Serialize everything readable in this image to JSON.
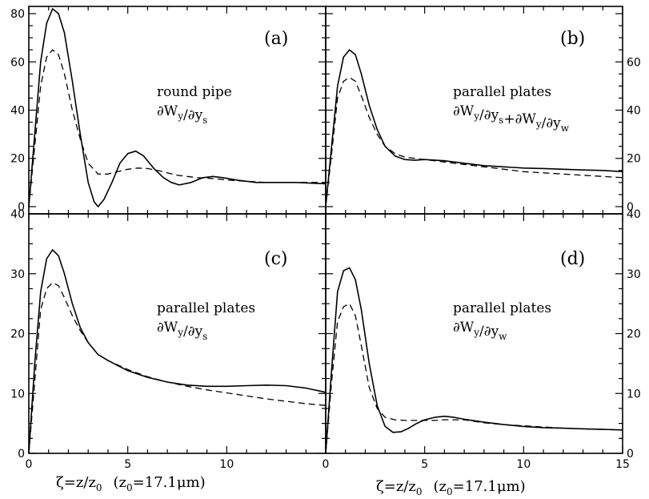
{
  "chart_data": [
    {
      "id": "a",
      "type": "line",
      "tag": "(a)",
      "annotation": [
        "round pipe",
        "∂W_y/∂y_s"
      ],
      "xlim": [
        0,
        15
      ],
      "ylim": [
        -3,
        83
      ],
      "left_ticks": [
        0,
        20,
        40,
        60,
        80
      ],
      "right_ticks": [
        0,
        20,
        40,
        60,
        80
      ],
      "series": [
        {
          "style": "solid",
          "x": [
            0,
            0.3,
            0.6,
            0.9,
            1.2,
            1.5,
            1.8,
            2.2,
            2.6,
            3.0,
            3.3,
            3.5,
            3.8,
            4.2,
            4.6,
            5.0,
            5.4,
            5.8,
            6.3,
            6.8,
            7.2,
            7.6,
            8.2,
            8.8,
            9.3,
            9.8,
            10.5,
            11.5,
            12.5,
            13.5,
            15
          ],
          "y": [
            0,
            30,
            60,
            76,
            82,
            80,
            72,
            52,
            30,
            10,
            2,
            0,
            3,
            10,
            18,
            22,
            23,
            21,
            16,
            12,
            10,
            9,
            10,
            12,
            12.5,
            12,
            11,
            10,
            10,
            10,
            9.5
          ]
        },
        {
          "style": "dashed",
          "x": [
            0,
            0.3,
            0.6,
            0.9,
            1.2,
            1.5,
            1.8,
            2.2,
            2.6,
            3.0,
            3.5,
            4.0,
            4.5,
            5.0,
            5.5,
            6.0,
            6.5,
            7.0,
            7.5,
            8.0,
            8.5,
            9.0,
            9.5,
            10.0,
            11.0,
            12.0,
            13.0,
            14.0,
            15.0
          ],
          "y": [
            0,
            25,
            50,
            62,
            65,
            63,
            55,
            40,
            28,
            18,
            13.5,
            13.5,
            14.5,
            15.5,
            16,
            15.8,
            15,
            14,
            13,
            12.5,
            12,
            11.8,
            11.5,
            11,
            10.5,
            10,
            10,
            10,
            10
          ]
        }
      ]
    },
    {
      "id": "b",
      "type": "line",
      "tag": "(b)",
      "annotation": [
        "parallel plates",
        "∂W_y/∂y_s+∂W_y/∂y_w"
      ],
      "xlim": [
        0,
        15
      ],
      "ylim": [
        -3,
        83
      ],
      "left_ticks": [
        0,
        20,
        40,
        60,
        80
      ],
      "right_ticks": [
        0,
        20,
        40,
        60
      ],
      "series": [
        {
          "style": "solid",
          "x": [
            0,
            0.3,
            0.6,
            0.9,
            1.2,
            1.5,
            1.8,
            2.2,
            2.6,
            3.0,
            3.5,
            4.0,
            4.5,
            5.0,
            6.0,
            7.0,
            8.0,
            9.0,
            10.0,
            11.0,
            12.0,
            13.0,
            14.0,
            15.0
          ],
          "y": [
            0,
            25,
            50,
            62,
            65,
            63,
            55,
            42,
            32,
            25,
            21,
            19.5,
            19.2,
            19.5,
            19,
            18,
            17,
            16.5,
            16,
            15.8,
            15.5,
            15.2,
            15,
            14.5
          ]
        },
        {
          "style": "dashed",
          "x": [
            0,
            0.3,
            0.6,
            0.9,
            1.2,
            1.5,
            1.8,
            2.2,
            2.6,
            3.0,
            3.5,
            4.0,
            4.5,
            5.0,
            6.0,
            7.0,
            8.0,
            9.0,
            10.0,
            11.0,
            12.0,
            13.0,
            14.0,
            15.0
          ],
          "y": [
            0,
            22,
            45,
            52,
            53.5,
            52,
            46,
            37,
            30,
            25,
            22,
            20.5,
            20,
            19.5,
            18.5,
            17.5,
            16.5,
            15.5,
            14.5,
            14,
            13.5,
            13,
            12.5,
            12
          ]
        }
      ]
    },
    {
      "id": "c",
      "type": "line",
      "tag": "(c)",
      "annotation": [
        "parallel plates",
        "∂W_y/∂y_s"
      ],
      "xlim": [
        0,
        15
      ],
      "ylim": [
        0,
        40
      ],
      "left_ticks": [
        0,
        10,
        20,
        30,
        40
      ],
      "right_ticks": [],
      "series": [
        {
          "style": "solid",
          "x": [
            0,
            0.3,
            0.6,
            0.9,
            1.2,
            1.5,
            1.8,
            2.2,
            2.6,
            3.0,
            3.5,
            4.0,
            5.0,
            6.0,
            7.0,
            8.0,
            9.0,
            10.0,
            11.0,
            12.0,
            13.0,
            14.0,
            15.0
          ],
          "y": [
            0,
            15,
            27,
            32.5,
            34,
            33,
            30,
            25,
            21,
            18.5,
            16.5,
            15.5,
            13.8,
            12.7,
            11.9,
            11.4,
            11.2,
            11.2,
            11.3,
            11.4,
            11.3,
            10.9,
            10.2
          ]
        },
        {
          "style": "dashed",
          "x": [
            0,
            0.3,
            0.6,
            0.9,
            1.2,
            1.5,
            1.8,
            2.2,
            2.6,
            3.0,
            3.5,
            4.0,
            5.0,
            6.0,
            7.0,
            8.0,
            9.0,
            10.0,
            11.0,
            12.0,
            13.0,
            14.0,
            15.0
          ],
          "y": [
            0,
            12,
            24,
            27.5,
            28.5,
            28,
            26,
            23,
            20.5,
            18.5,
            16.5,
            15.5,
            14,
            12.8,
            11.9,
            11.2,
            10.6,
            10.1,
            9.6,
            9.1,
            8.7,
            8.3,
            8.0
          ]
        }
      ]
    },
    {
      "id": "d",
      "type": "line",
      "tag": "(d)",
      "annotation": [
        "parallel plates",
        "∂W_y/∂y_w"
      ],
      "xlim": [
        0,
        15
      ],
      "ylim": [
        0,
        40
      ],
      "left_ticks": [
        0,
        10,
        20,
        30,
        40
      ],
      "right_ticks": [
        0,
        10,
        20,
        30,
        40
      ],
      "series": [
        {
          "style": "solid",
          "x": [
            0,
            0.3,
            0.6,
            0.9,
            1.2,
            1.5,
            1.8,
            2.2,
            2.6,
            3.0,
            3.4,
            3.8,
            4.2,
            4.6,
            5.0,
            5.5,
            6.0,
            6.5,
            7.0,
            8.0,
            9.0,
            10.0,
            11.0,
            12.0,
            13.0,
            14.0,
            15.0
          ],
          "y": [
            0,
            14,
            27,
            30.5,
            31,
            29,
            24,
            15,
            8,
            4.5,
            3.5,
            3.6,
            4.2,
            5,
            5.6,
            6,
            6.2,
            6,
            5.7,
            5.2,
            4.8,
            4.5,
            4.3,
            4.2,
            4.1,
            4.0,
            3.9
          ]
        },
        {
          "style": "dashed",
          "x": [
            0,
            0.3,
            0.6,
            0.9,
            1.2,
            1.5,
            1.8,
            2.2,
            2.6,
            3.0,
            3.5,
            4.0,
            4.5,
            5.0,
            5.5,
            6.0,
            6.5,
            7.0,
            8.0,
            9.0,
            10.0,
            11.0,
            12.0,
            13.0,
            14.0,
            15.0
          ],
          "y": [
            0,
            12,
            22,
            24.5,
            25,
            23,
            18,
            11,
            7.5,
            6,
            5.6,
            5.5,
            5.5,
            5.5,
            5.5,
            5.6,
            5.6,
            5.6,
            5.1,
            4.8,
            4.6,
            4.4,
            4.2,
            4.1,
            4.0,
            3.9
          ]
        }
      ]
    }
  ],
  "bottom_ticks": {
    "left": [
      "0",
      "5",
      "10"
    ],
    "right": [
      "0",
      "5",
      "10",
      "15"
    ]
  },
  "xlabels": {
    "left": {
      "main": "ζ=z/z",
      "sub0": "0",
      "paren_open": "(z",
      "sub1": "0",
      "paren_rest": "=17.1μm)"
    },
    "right": {
      "main": "ζ=z/z",
      "sub0": "0",
      "paren_open": "(z",
      "sub1": "0",
      "paren_rest": "=17.1μm)"
    }
  }
}
